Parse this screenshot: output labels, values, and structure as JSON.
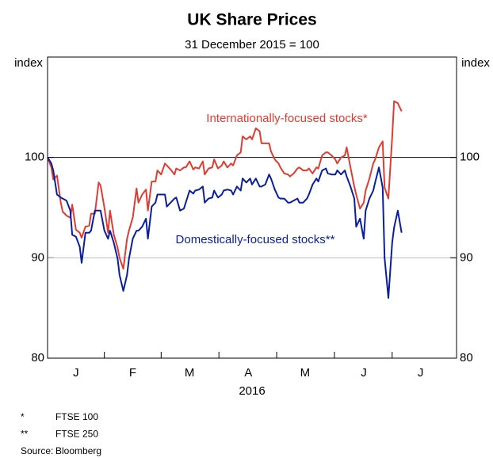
{
  "chart_data": {
    "type": "line",
    "title": "UK Share Prices",
    "subtitle": "31 December 2015 = 100",
    "y_label": "index",
    "y2_label": "index",
    "x_label": "2016",
    "xlim": [
      0,
      216
    ],
    "xticks": [
      {
        "value": 15,
        "label": "J"
      },
      {
        "value": 45,
        "label": "F"
      },
      {
        "value": 75,
        "label": "M"
      },
      {
        "value": 106,
        "label": "A"
      },
      {
        "value": 136,
        "label": "M"
      },
      {
        "value": 167,
        "label": "J"
      },
      {
        "value": 197,
        "label": "J"
      }
    ],
    "ylim": [
      80,
      110
    ],
    "yticks": [
      80,
      90,
      100
    ],
    "y2lim": [
      80,
      110
    ],
    "y2ticks": [
      80,
      90,
      100
    ],
    "grid": true,
    "highlight_tick": 100,
    "x": [
      0,
      2,
      3,
      5,
      7,
      8,
      10,
      12,
      13,
      15,
      17,
      18,
      20,
      22,
      23,
      25,
      27,
      28,
      30,
      32,
      33,
      35,
      37,
      38,
      40,
      42,
      43,
      45,
      47,
      48,
      50,
      52,
      53,
      55,
      57,
      58,
      60,
      62,
      63,
      65,
      67,
      68,
      70,
      72,
      73,
      75,
      77,
      78,
      80,
      82,
      83,
      85,
      87,
      88,
      90,
      92,
      93,
      95,
      97,
      98,
      100,
      102,
      103,
      105,
      107,
      108,
      110,
      112,
      113,
      115,
      117,
      118,
      120,
      122,
      123,
      125,
      127,
      128,
      130,
      132,
      133,
      135,
      137,
      138,
      140,
      142,
      143,
      145,
      147,
      148,
      150,
      152,
      153,
      155,
      157,
      158,
      160,
      162,
      163,
      165,
      167,
      168,
      170,
      172,
      173,
      175,
      177,
      178,
      180,
      182,
      183,
      185,
      187
    ],
    "series": [
      {
        "name": "Internationally-focused stocks*",
        "color": "#e03c31",
        "values": [
          100,
          99.0,
          97.8,
          98.2,
          95.5,
          94.6,
          94.2,
          94.0,
          95.3,
          92.8,
          92.5,
          92.0,
          93.1,
          93.2,
          94.4,
          94.4,
          97.5,
          97.2,
          95.0,
          92.5,
          94.7,
          92.3,
          91.0,
          90.0,
          88.9,
          91.9,
          92.7,
          94.0,
          96.9,
          95.5,
          96.3,
          96.8,
          94.7,
          97.6,
          97.6,
          98.7,
          98.3,
          99.4,
          99.2,
          98.8,
          98.3,
          98.9,
          98.7,
          99.0,
          99.0,
          99.6,
          98.8,
          99.0,
          98.9,
          99.6,
          98.3,
          98.9,
          99.0,
          99.8,
          98.9,
          99.2,
          99.6,
          99.0,
          99.4,
          99.2,
          100.2,
          100.5,
          102.1,
          101.8,
          102.1,
          101.8,
          102.9,
          102.6,
          101.4,
          101.4,
          101.4,
          100.6,
          99.8,
          99.4,
          99.0,
          98.4,
          98.3,
          98.1,
          98.4,
          98.9,
          99.0,
          98.7,
          98.7,
          98.9,
          98.4,
          99.0,
          98.9,
          100.2,
          100.5,
          100.5,
          100.2,
          99.8,
          99.4,
          100.0,
          100.2,
          101.0,
          99.0,
          97.1,
          96.3,
          94.9,
          95.5,
          96.7,
          97.9,
          99.4,
          99.8,
          101.0,
          101.6,
          97.0,
          95.9,
          102.0,
          105.6,
          105.4,
          104.6
        ]
      },
      {
        "name": "Domestically-focused stocks**",
        "color": "#0a1f9c",
        "values": [
          100,
          99.4,
          98.7,
          96.3,
          96.0,
          95.9,
          95.7,
          94.7,
          92.3,
          92.1,
          91.1,
          89.5,
          92.5,
          92.5,
          92.7,
          94.7,
          94.7,
          94.7,
          92.7,
          91.9,
          92.7,
          91.5,
          89.9,
          88.3,
          86.7,
          88.3,
          89.9,
          91.9,
          92.7,
          92.7,
          93.1,
          93.9,
          91.9,
          95.1,
          95.5,
          96.3,
          96.3,
          96.3,
          95.1,
          95.5,
          95.9,
          96.0,
          94.7,
          94.9,
          95.5,
          96.7,
          96.4,
          96.7,
          96.8,
          97.1,
          95.5,
          95.9,
          96.0,
          96.7,
          96.0,
          96.3,
          96.7,
          96.8,
          96.7,
          96.3,
          97.1,
          96.7,
          97.9,
          97.5,
          97.9,
          97.3,
          97.9,
          97.1,
          97.1,
          97.3,
          98.3,
          97.9,
          96.8,
          96.0,
          95.9,
          95.9,
          95.5,
          95.5,
          95.7,
          95.9,
          95.5,
          95.5,
          95.9,
          96.3,
          97.3,
          97.9,
          97.6,
          98.7,
          98.9,
          98.4,
          98.3,
          98.3,
          98.7,
          98.3,
          98.7,
          98.1,
          97.1,
          95.9,
          93.1,
          93.9,
          91.9,
          94.7,
          95.9,
          96.7,
          97.5,
          99.0,
          97.0,
          90.0,
          86.0,
          91.5,
          93.0,
          94.7,
          92.5
        ]
      }
    ],
    "footnotes": [
      {
        "mark": "*",
        "text": "FTSE 100"
      },
      {
        "mark": "**",
        "text": "FTSE 250"
      },
      {
        "mark": "Source:",
        "text": "Bloomberg"
      }
    ]
  }
}
